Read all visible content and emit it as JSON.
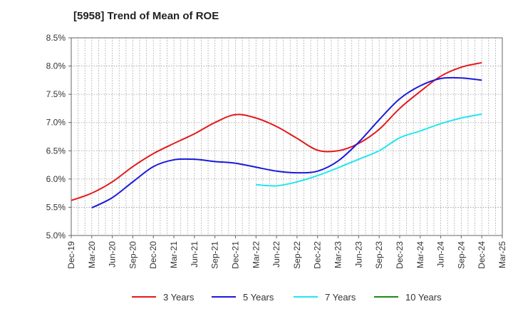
{
  "chart_data": {
    "type": "line",
    "title": "[5958]  Trend of Mean of ROE",
    "xlabel": "",
    "ylabel": "",
    "ylim": [
      5.0,
      8.5
    ],
    "y_ticks": [
      "5.0%",
      "5.5%",
      "6.0%",
      "6.5%",
      "7.0%",
      "7.5%",
      "8.0%",
      "8.5%"
    ],
    "categories": [
      "Dec-19",
      "Mar-20",
      "Jun-20",
      "Sep-20",
      "Dec-20",
      "Mar-21",
      "Jun-21",
      "Sep-21",
      "Dec-21",
      "Mar-22",
      "Jun-22",
      "Sep-22",
      "Dec-22",
      "Mar-23",
      "Jun-23",
      "Sep-23",
      "Dec-23",
      "Mar-24",
      "Jun-24",
      "Sep-24",
      "Dec-24",
      "Mar-25"
    ],
    "grid": true,
    "legend_position": "bottom",
    "series": [
      {
        "name": "3 Years",
        "color": "#e31a1c",
        "values": [
          5.62,
          5.75,
          5.95,
          6.22,
          6.45,
          6.63,
          6.8,
          7.0,
          7.14,
          7.08,
          6.93,
          6.72,
          6.51,
          6.5,
          6.63,
          6.88,
          7.25,
          7.55,
          7.82,
          7.98,
          8.06,
          null
        ]
      },
      {
        "name": "5 Years",
        "color": "#1a1adb",
        "values": [
          null,
          5.49,
          5.67,
          5.95,
          6.22,
          6.34,
          6.35,
          6.31,
          6.28,
          6.21,
          6.14,
          6.11,
          6.14,
          6.32,
          6.65,
          7.05,
          7.42,
          7.65,
          7.78,
          7.79,
          7.75,
          null
        ]
      },
      {
        "name": "7 Years",
        "color": "#22e6ee",
        "values": [
          null,
          null,
          null,
          null,
          null,
          null,
          null,
          null,
          null,
          5.9,
          5.88,
          5.95,
          6.06,
          6.2,
          6.35,
          6.5,
          6.73,
          6.85,
          6.98,
          7.08,
          7.15,
          null
        ]
      },
      {
        "name": "10 Years",
        "color": "#1a8a1a",
        "values": [
          null,
          null,
          null,
          null,
          null,
          null,
          null,
          null,
          null,
          null,
          null,
          null,
          null,
          null,
          null,
          null,
          null,
          null,
          null,
          null,
          null,
          null
        ]
      }
    ]
  }
}
